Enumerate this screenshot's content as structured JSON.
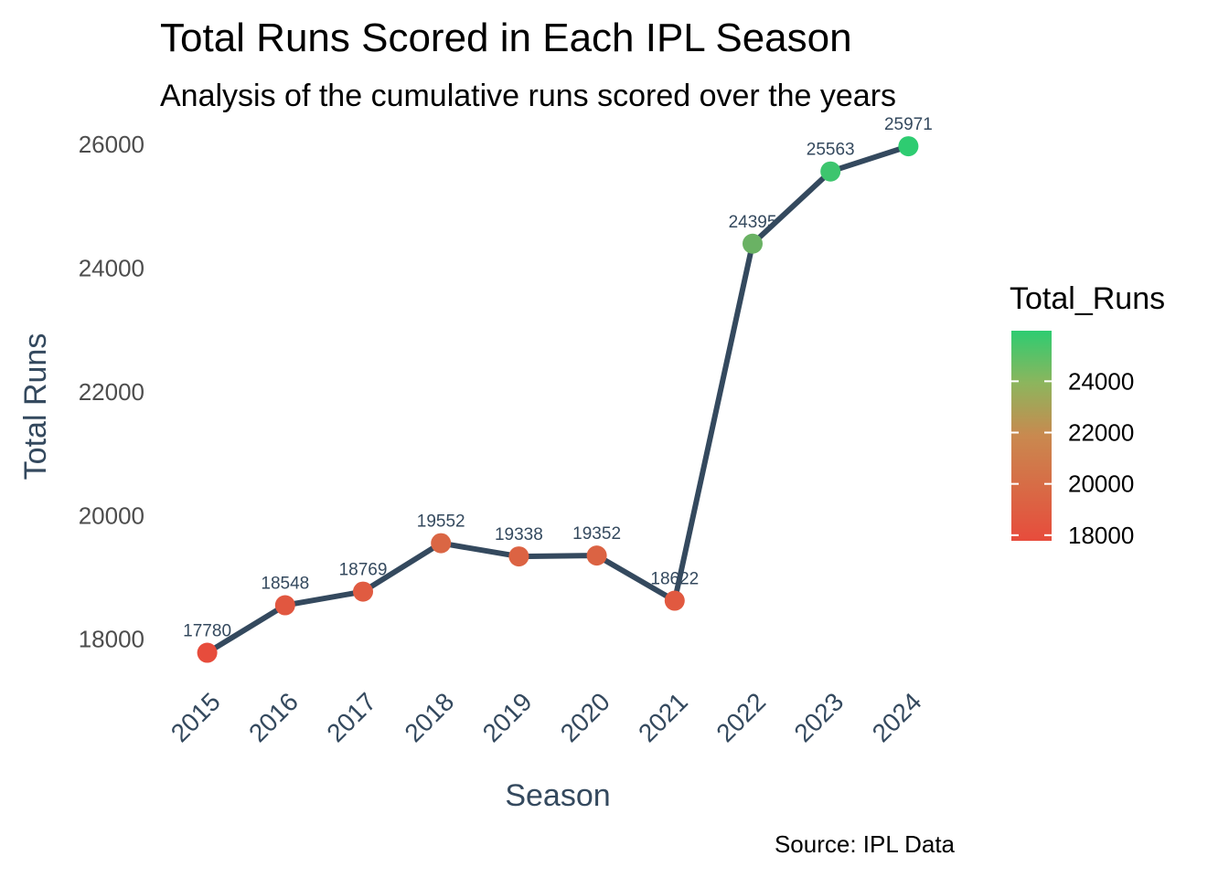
{
  "chart_data": {
    "type": "line",
    "title": "Total Runs Scored in Each IPL Season",
    "subtitle": "Analysis of the cumulative runs scored over the years",
    "xlabel": "Season",
    "ylabel": "Total Runs",
    "caption": "Source: IPL Data",
    "categories": [
      "2015",
      "2016",
      "2017",
      "2018",
      "2019",
      "2020",
      "2021",
      "2022",
      "2023",
      "2024"
    ],
    "values": [
      17780,
      18548,
      18769,
      19552,
      19338,
      19352,
      18622,
      24395,
      25563,
      25971
    ],
    "y_ticks": [
      18000,
      20000,
      22000,
      24000,
      26000
    ],
    "ylim": [
      17330,
      26120
    ],
    "grid": false,
    "line_color": "#34495e",
    "color_low": "#e74c3c",
    "color_high": "#2ecc71",
    "legend": {
      "title": "Total_Runs",
      "position": "right",
      "ticks": [
        18000,
        20000,
        22000,
        24000
      ],
      "range": [
        17780,
        25971
      ]
    }
  }
}
